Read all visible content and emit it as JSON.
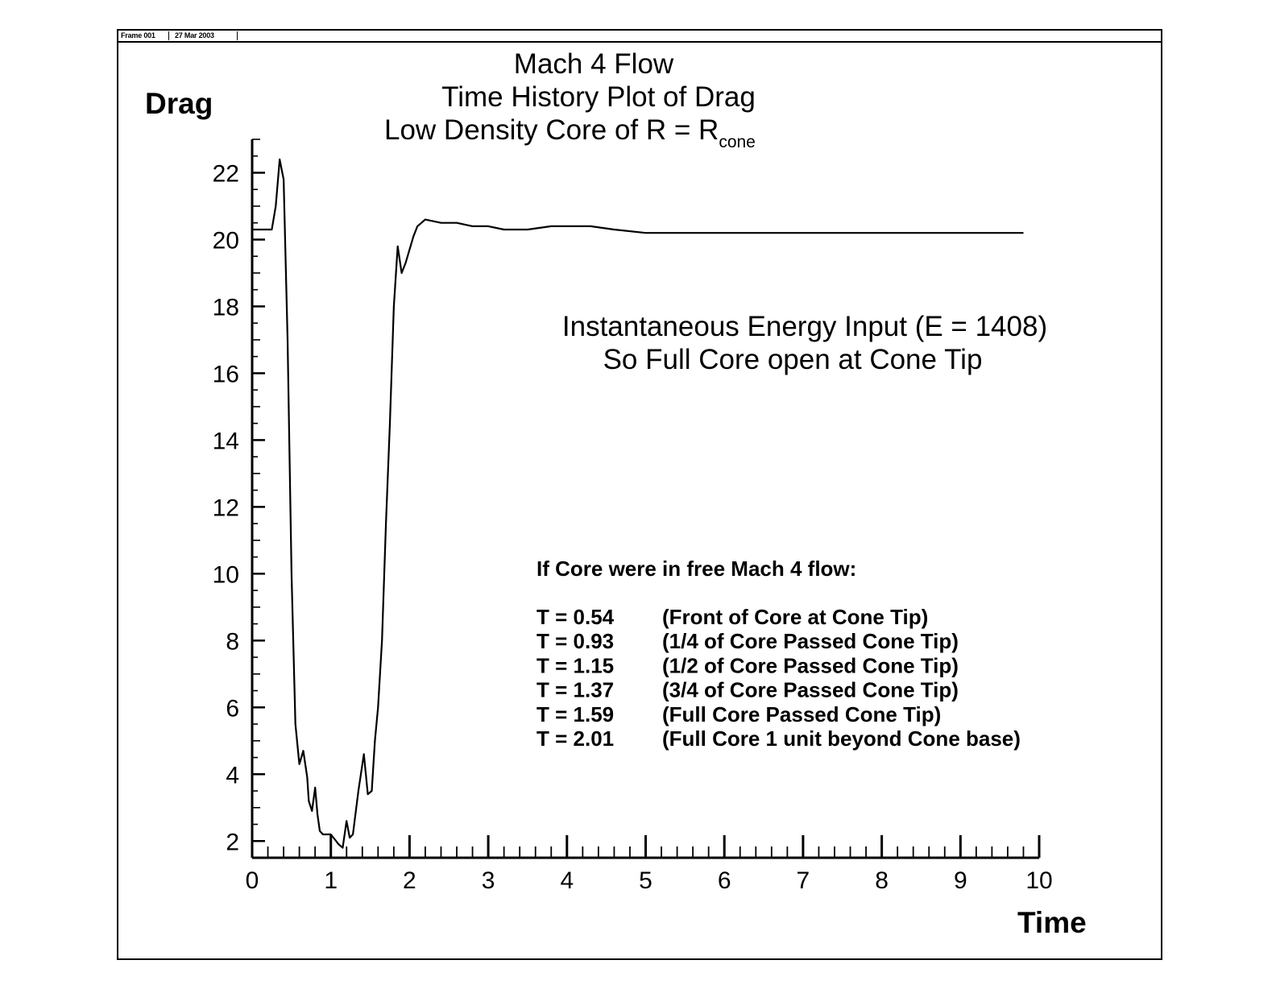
{
  "frame": {
    "label": "Frame 001",
    "date": "27 Mar 2003"
  },
  "chart_data": {
    "type": "line",
    "title_lines": [
      "Mach 4 Flow",
      "Time History Plot of Drag"
    ],
    "title_line3": {
      "text": "Low Density Core of R =  R",
      "subscript": "cone"
    },
    "xlabel": "Time",
    "ylabel": "Drag",
    "xlim": [
      0,
      10
    ],
    "ylim": [
      1.5,
      23
    ],
    "xticks": [
      "0",
      "1",
      "2",
      "3",
      "4",
      "5",
      "6",
      "7",
      "8",
      "9",
      "10"
    ],
    "yticks": [
      "2",
      "4",
      "6",
      "8",
      "10",
      "12",
      "14",
      "16",
      "18",
      "20",
      "22"
    ],
    "annotation": [
      "Instantaneous Energy Input (E = 1408)",
      "So Full Core open at Cone Tip"
    ],
    "note_heading": "If Core were in free Mach 4 flow:",
    "notes": [
      {
        "t": "T = 0.54",
        "desc": "(Front of Core at Cone Tip)"
      },
      {
        "t": "T = 0.93",
        "desc": "(1/4 of Core Passed Cone Tip)"
      },
      {
        "t": "T = 1.15",
        "desc": "(1/2 of Core Passed Cone Tip)"
      },
      {
        "t": "T = 1.37",
        "desc": "(3/4 of Core Passed Cone Tip)"
      },
      {
        "t": "T = 1.59",
        "desc": "(Full Core Passed Cone Tip)"
      },
      {
        "t": "T = 2.01",
        "desc": "(Full Core 1 unit beyond Cone base)"
      }
    ],
    "series": [
      {
        "name": "Drag",
        "x": [
          0,
          0.25,
          0.3,
          0.35,
          0.4,
          0.45,
          0.5,
          0.55,
          0.6,
          0.65,
          0.7,
          0.72,
          0.76,
          0.8,
          0.83,
          0.86,
          0.9,
          1.0,
          1.1,
          1.15,
          1.2,
          1.24,
          1.28,
          1.35,
          1.42,
          1.47,
          1.52,
          1.56,
          1.6,
          1.65,
          1.7,
          1.75,
          1.8,
          1.85,
          1.9,
          1.95,
          2.0,
          2.05,
          2.1,
          2.2,
          2.4,
          2.5,
          2.6,
          2.8,
          3.0,
          3.2,
          3.5,
          3.8,
          4.0,
          4.3,
          4.6,
          5.0,
          5.5,
          6.0,
          6.5,
          7.0,
          7.5,
          8.0,
          8.5,
          9.0,
          9.5,
          9.8
        ],
        "y": [
          20.3,
          20.3,
          21.0,
          22.4,
          21.8,
          17.0,
          10.0,
          5.5,
          4.3,
          4.7,
          3.9,
          3.2,
          2.9,
          3.6,
          2.8,
          2.3,
          2.2,
          2.2,
          1.9,
          1.8,
          2.6,
          2.1,
          2.2,
          3.5,
          4.6,
          3.4,
          3.5,
          5.0,
          6.0,
          8.0,
          11.5,
          14.5,
          18.0,
          19.8,
          19.0,
          19.3,
          19.7,
          20.1,
          20.4,
          20.6,
          20.5,
          20.5,
          20.5,
          20.4,
          20.4,
          20.3,
          20.3,
          20.4,
          20.4,
          20.4,
          20.3,
          20.2,
          20.2,
          20.2,
          20.2,
          20.2,
          20.2,
          20.2,
          20.2,
          20.2,
          20.2,
          20.2
        ]
      }
    ]
  }
}
